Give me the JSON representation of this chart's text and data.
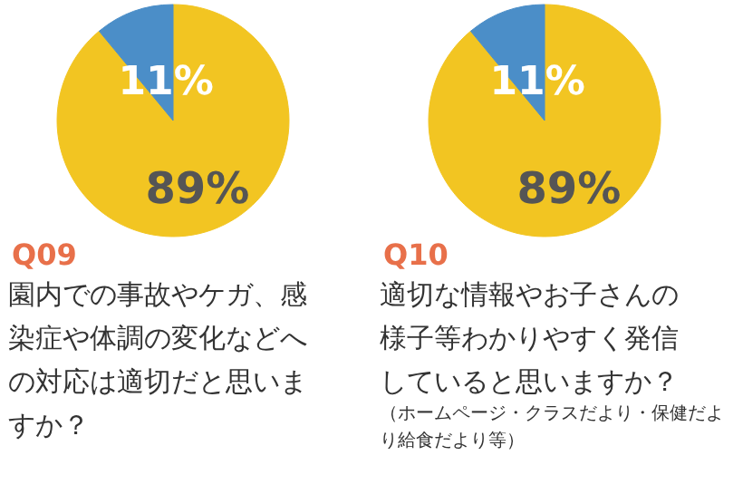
{
  "chart_data": [
    {
      "type": "pie",
      "title": "Q09",
      "subtitle": "園内での事故やケガ、感染症や体調の変化などへの対応は適切だと思いますか？",
      "categories": [
        null,
        null
      ],
      "values": [
        89,
        11
      ],
      "colors": [
        "#f2c522",
        "#4b8ec8"
      ],
      "value_labels": [
        "89%",
        "11%"
      ]
    },
    {
      "type": "pie",
      "title": "Q10",
      "subtitle": "適切な情報やお子さんの様子等わかりやすく発信していると思いますか？",
      "categories": [
        null,
        null
      ],
      "values": [
        89,
        11
      ],
      "colors": [
        "#f2c522",
        "#4b8ec8"
      ],
      "value_labels": [
        "89%",
        "11%"
      ],
      "annotations": [
        "（ホームページ・クラスだより・保健だより給食だより等）"
      ]
    }
  ]
}
